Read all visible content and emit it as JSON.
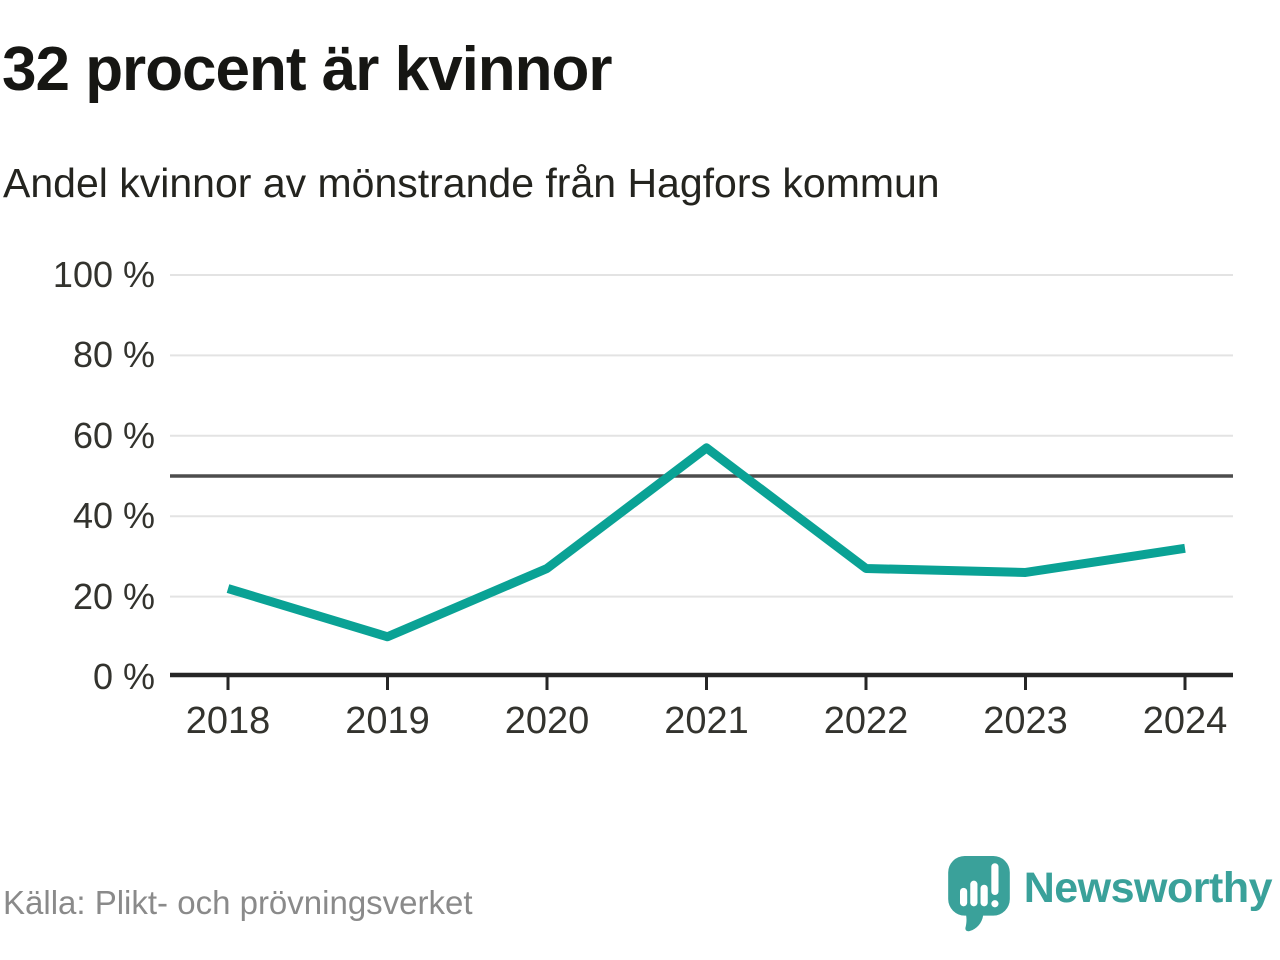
{
  "title": "32 procent är kvinnor",
  "subtitle": "Andel kvinnor av mönstrande från Hagfors kommun",
  "source": "Källa: Plikt- och prövningsverket",
  "branding": {
    "name": "Newsworthy",
    "logo_icon": "newsworthy-speech-bubble-bar-chart-icon",
    "color": "#3aa19a"
  },
  "colors": {
    "line": "#0aa295",
    "gridline": "#e3e3e3",
    "reference_line": "#4d4d4d",
    "axis": "#262626",
    "tick_label": "#33332e",
    "title_text": "#161613",
    "source_text": "#8a8a8a"
  },
  "chart_data": {
    "type": "line",
    "title": "32 procent är kvinnor",
    "subtitle": "Andel kvinnor av mönstrande från Hagfors kommun",
    "x": [
      2018,
      2019,
      2020,
      2021,
      2022,
      2023,
      2024
    ],
    "x_labels": [
      "2018",
      "2019",
      "2020",
      "2021",
      "2022",
      "2023",
      "2024"
    ],
    "series": [
      {
        "name": "Andel kvinnor av mönstrande",
        "values": [
          22,
          10,
          27,
          57,
          27,
          26,
          32
        ]
      }
    ],
    "unit": "%",
    "ylim": [
      0,
      100
    ],
    "yticks": [
      0,
      20,
      40,
      60,
      80,
      100
    ],
    "ytick_labels": [
      "0 %",
      "20 %",
      "40 %",
      "60 %",
      "80 %",
      "100 %"
    ],
    "reference_line": 50,
    "grid": "horizontal",
    "legend": "none",
    "xlabel": "",
    "ylabel": ""
  }
}
